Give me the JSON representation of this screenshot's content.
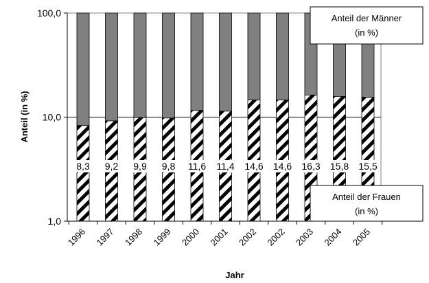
{
  "chart_data": {
    "type": "bar",
    "stacked": true,
    "y_scale": "log",
    "ylim": [
      1,
      100
    ],
    "grid": true,
    "title": "",
    "xlabel": "Jahr",
    "ylabel": "Anteil (in %)",
    "y_ticks": [
      "1,0",
      "10,0",
      "100,0"
    ],
    "categories": [
      "1996",
      "1997",
      "1998",
      "1999",
      "2000",
      "2001",
      "2002",
      "2002",
      "2003",
      "2004",
      "2005"
    ],
    "series": [
      {
        "name": "Anteil der Frauen (in %)",
        "values": [
          8.3,
          9.2,
          9.9,
          9.8,
          11.6,
          11.4,
          14.6,
          14.6,
          16.3,
          15.8,
          15.5
        ],
        "labels": [
          "8,3",
          "9,2",
          "9,9",
          "9,8",
          "11,6",
          "11,4",
          "14,6",
          "14,6",
          "16,3",
          "15,8",
          "15,5"
        ],
        "pattern": "diagonal-hatch"
      },
      {
        "name": "Anteil der Männer (in %)",
        "values": [
          91.7,
          90.8,
          90.1,
          90.2,
          88.4,
          88.6,
          85.4,
          85.4,
          83.7,
          84.2,
          84.5
        ],
        "color": "#808080"
      }
    ],
    "legend": [
      {
        "line1": "Anteil der Männer",
        "line2": "(in %)",
        "position": "top-right"
      },
      {
        "line1": "Anteil der Frauen",
        "line2": "(in %)",
        "position": "bottom-right"
      }
    ]
  }
}
